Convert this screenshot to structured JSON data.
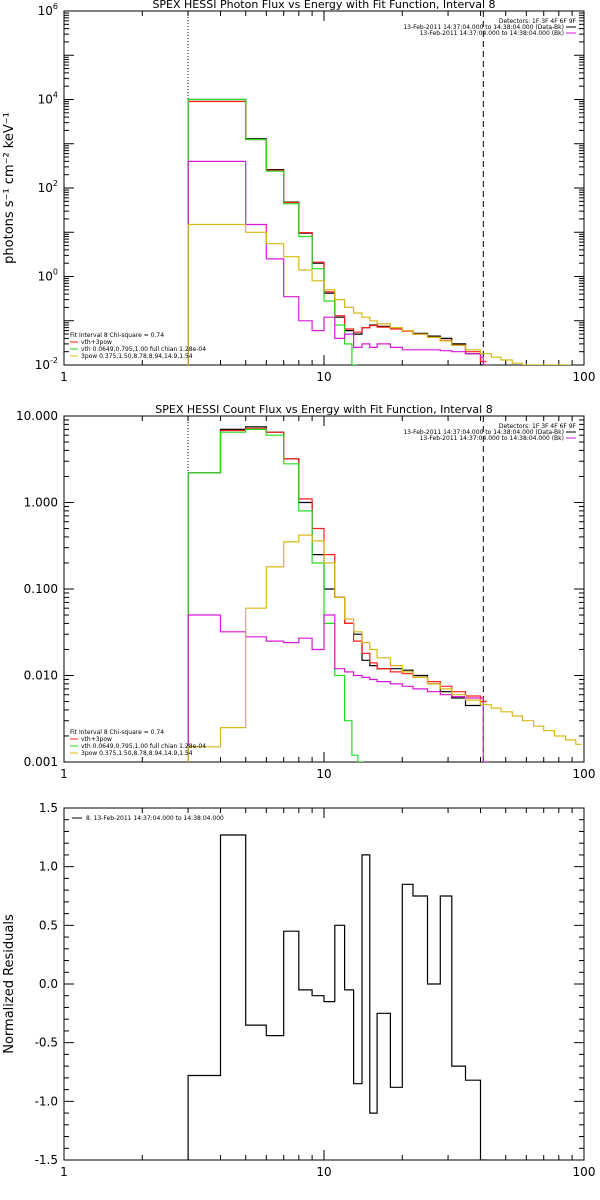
{
  "colors": {
    "black": "#000000",
    "red": "#ff1f1f",
    "green": "#22dd22",
    "magenta": "#d818d8",
    "yellow": "#d8b818"
  },
  "chart_data": [
    {
      "type": "line",
      "title": "SPEX HESSI Photon Flux vs Energy with Fit Function, Interval 8",
      "xscale": "log",
      "yscale": "log",
      "xlim": [
        1,
        100
      ],
      "ylim": [
        0.01,
        1000000
      ],
      "xticks": [
        {
          "v": 1,
          "label": "1"
        },
        {
          "v": 10,
          "label": "10"
        },
        {
          "v": 100,
          "label": "100"
        }
      ],
      "yticks": [
        {
          "v": 0.01,
          "label": "10",
          "sup": "-2"
        },
        {
          "v": 1,
          "label": "10",
          "sup": "0"
        },
        {
          "v": 100,
          "label": "10",
          "sup": "2"
        },
        {
          "v": 10000,
          "label": "10",
          "sup": "4"
        },
        {
          "v": 1000000,
          "label": "10",
          "sup": "6"
        }
      ],
      "ylabel": "photons s⁻¹ cm⁻² keV⁻¹",
      "vlines": [
        {
          "x": 3.0,
          "style": "dotted"
        },
        {
          "x": 41,
          "style": "dashed"
        }
      ],
      "legend_top": [
        "Detectors: 1F 3F 4F 6F 9F",
        "13-Feb-2011 14:37:04.000 to 14:38:04.000 (Data-Bk)",
        "13-Feb-2011 14:37:04.000 to 14:38:04.000 (Bk)"
      ],
      "legend_bottom": [
        "Fit Interval 8   Chi-square = 0.74",
        "vth+3pow",
        "vth 0.0649,0.795,1.00  full chian 1.28e-04",
        "3pow 0.375,1.50,8.78,8.94,14.9,1.54"
      ],
      "series": [
        {
          "color": "black",
          "x": [
            3.0,
            4.0,
            5.0,
            6.0,
            7.0,
            8.0,
            9.0,
            10.0,
            11.0,
            12.0,
            13.0,
            14.0,
            15.0,
            16.0,
            18.0,
            20.0,
            22.0,
            25.0,
            28.0,
            31.0,
            35.0,
            40.0
          ],
          "y": [
            10000,
            10000,
            1300,
            260,
            48,
            9.5,
            2.0,
            0.42,
            0.12,
            0.06,
            0.05,
            0.07,
            0.08,
            0.075,
            0.07,
            0.06,
            0.052,
            0.045,
            0.04,
            0.03,
            0.018,
            0.01
          ]
        },
        {
          "color": "red",
          "x": [
            3.0,
            4.0,
            5.0,
            6.0,
            7.0,
            8.0,
            9.0,
            10.0,
            11.0,
            12.0,
            13.0,
            14.0,
            15.0,
            16.0,
            18.0,
            20.0,
            22.0,
            25.0,
            28.0,
            31.0,
            35.0,
            40.0
          ],
          "y": [
            9000,
            9000,
            1250,
            250,
            47,
            9.8,
            2.1,
            0.45,
            0.13,
            0.065,
            0.055,
            0.07,
            0.078,
            0.072,
            0.065,
            0.058,
            0.05,
            0.042,
            0.036,
            0.028,
            0.02,
            0.012
          ]
        },
        {
          "color": "green",
          "x": [
            3.0,
            4.0,
            5.0,
            6.0,
            7.0,
            8.0,
            9.0,
            10.0,
            11.0,
            12.0,
            12.8
          ],
          "y": [
            10000,
            10000,
            1250,
            240,
            44,
            8.0,
            1.5,
            0.28,
            0.08,
            0.03,
            0.01
          ]
        },
        {
          "color": "magenta",
          "x": [
            3.0,
            4.0,
            5.0,
            6.0,
            7.0,
            8.0,
            9.0,
            10.0,
            11.0,
            12.0,
            13.0,
            14.0,
            15.0,
            16.0,
            18.0,
            20.0,
            22.0,
            25.0,
            28.0,
            31.0,
            35.0,
            40.0,
            41.0
          ],
          "y": [
            400,
            400,
            15,
            2.5,
            0.35,
            0.1,
            0.06,
            0.12,
            0.04,
            0.05,
            0.025,
            0.03,
            0.025,
            0.03,
            0.025,
            0.022,
            0.022,
            0.022,
            0.021,
            0.02,
            0.018,
            0.015,
            0.01
          ]
        },
        {
          "color": "yellow",
          "x": [
            3.0,
            4.0,
            5.0,
            6.0,
            7.0,
            8.0,
            9.0,
            10.0,
            11.0,
            12.0,
            13.0,
            14.0,
            15.0,
            16.0,
            18.0,
            20.0,
            22.0,
            25.0,
            28.0,
            31.0,
            35.0,
            40.0,
            44.0,
            48.0,
            53.0,
            58.0,
            64.0,
            70.0,
            77.0,
            85.0
          ],
          "y": [
            15,
            15,
            10,
            5.5,
            2.8,
            1.4,
            0.8,
            0.5,
            0.3,
            0.2,
            0.15,
            0.12,
            0.1,
            0.085,
            0.07,
            0.06,
            0.05,
            0.042,
            0.035,
            0.028,
            0.022,
            0.018,
            0.015,
            0.013,
            0.011,
            0.01,
            0.009,
            0.008,
            0.007,
            0.006
          ]
        }
      ]
    },
    {
      "type": "line",
      "title": "SPEX HESSI Count Flux vs Energy with Fit Function, Interval 8",
      "xscale": "log",
      "yscale": "log",
      "xlim": [
        1,
        100
      ],
      "ylim": [
        0.001,
        10
      ],
      "xticks": [
        {
          "v": 1,
          "label": "1"
        },
        {
          "v": 10,
          "label": "10"
        },
        {
          "v": 100,
          "label": "100"
        }
      ],
      "yticks": [
        {
          "v": 0.001,
          "label": "0.001"
        },
        {
          "v": 0.01,
          "label": "0.010"
        },
        {
          "v": 0.1,
          "label": "0.100"
        },
        {
          "v": 1,
          "label": "1.000"
        },
        {
          "v": 10,
          "label": "10.000"
        }
      ],
      "ylabel": "",
      "vlines": [
        {
          "x": 3.0,
          "style": "dotted"
        },
        {
          "x": 41,
          "style": "dashed"
        }
      ],
      "legend_top": [
        "Detectors: 1F 3F 4F 6F 9F",
        "13-Feb-2011 14:37:04.000 to 14:38:04.000 (Data-Bk)",
        "13-Feb-2011 14:37:04.000 to 14:38:04.000 (Bk)"
      ],
      "legend_bottom": [
        "Fit Interval 8   Chi-square = 0.74",
        "vth+3pow",
        "vth 0.0649,0.795,1.00  full chian 1.28e-04",
        "3pow 0.375,1.50,8.78,8.94,14.9,1.54"
      ],
      "series": [
        {
          "color": "black",
          "x": [
            3.0,
            3.5,
            4.0,
            5.0,
            6.0,
            7.0,
            8.0,
            9.0,
            10.0,
            11.0,
            12.0,
            13.0,
            14.0,
            15.0,
            16.0,
            18.0,
            20.0,
            22.0,
            25.0,
            28.0,
            31.0,
            35.0,
            40.0
          ],
          "y": [
            2.2,
            2.2,
            7.0,
            7.5,
            6.5,
            3.2,
            1.0,
            0.25,
            0.1,
            0.08,
            0.04,
            0.03,
            0.015,
            0.013,
            0.012,
            0.012,
            0.0115,
            0.01,
            0.008,
            0.0065,
            0.0055,
            0.0045,
            0.005
          ]
        },
        {
          "color": "red",
          "x": [
            3.0,
            3.5,
            4.0,
            5.0,
            6.0,
            7.0,
            8.0,
            9.0,
            10.0,
            11.0,
            12.0,
            13.0,
            14.0,
            15.0,
            16.0,
            18.0,
            20.0,
            22.0,
            25.0,
            28.0,
            31.0,
            35.0,
            40.0
          ],
          "y": [
            2.2,
            2.2,
            6.8,
            7.2,
            6.5,
            3.2,
            1.1,
            0.5,
            0.25,
            0.08,
            0.04,
            0.025,
            0.018,
            0.014,
            0.012,
            0.011,
            0.0105,
            0.0095,
            0.0085,
            0.0075,
            0.0065,
            0.0058,
            0.005
          ]
        },
        {
          "color": "green",
          "x": [
            3.0,
            3.5,
            4.0,
            5.0,
            6.0,
            7.0,
            8.0,
            9.0,
            10.0,
            11.0,
            12.0,
            12.8,
            13.5
          ],
          "y": [
            2.2,
            2.2,
            6.5,
            7.0,
            6.0,
            2.8,
            0.8,
            0.2,
            0.04,
            0.01,
            0.003,
            0.0012,
            0.001
          ]
        },
        {
          "color": "magenta",
          "x": [
            3.0,
            3.5,
            4.0,
            5.0,
            6.0,
            7.0,
            8.0,
            9.0,
            10.0,
            11.0,
            12.0,
            13.0,
            14.0,
            15.0,
            16.0,
            18.0,
            20.0,
            22.0,
            25.0,
            28.0,
            31.0,
            35.0,
            40.0,
            41.0
          ],
          "y": [
            0.05,
            0.05,
            0.032,
            0.028,
            0.025,
            0.024,
            0.027,
            0.02,
            0.05,
            0.012,
            0.011,
            0.01,
            0.0095,
            0.009,
            0.0085,
            0.008,
            0.0075,
            0.007,
            0.0065,
            0.006,
            0.0057,
            0.0055,
            0.0055,
            0.001
          ]
        },
        {
          "color": "yellow",
          "x": [
            3.0,
            3.5,
            4.0,
            5.0,
            6.0,
            7.0,
            8.0,
            9.0,
            10.0,
            11.0,
            12.0,
            13.0,
            14.0,
            15.0,
            16.0,
            18.0,
            20.0,
            22.0,
            25.0,
            28.0,
            31.0,
            35.0,
            40.0,
            44.0,
            48.0,
            53.0,
            58.0,
            64.0,
            70.0,
            77.0,
            85.0,
            93.0
          ],
          "y": [
            0.0015,
            0.0015,
            0.0025,
            0.06,
            0.18,
            0.35,
            0.42,
            0.36,
            0.2,
            0.08,
            0.045,
            0.032,
            0.024,
            0.02,
            0.016,
            0.013,
            0.011,
            0.0095,
            0.008,
            0.007,
            0.006,
            0.0052,
            0.0046,
            0.0042,
            0.0038,
            0.0034,
            0.003,
            0.0026,
            0.0023,
            0.002,
            0.0018,
            0.0016
          ]
        }
      ]
    },
    {
      "type": "line",
      "title": "",
      "xscale": "log",
      "yscale": "linear",
      "xlim": [
        1,
        100
      ],
      "ylim": [
        -1.5,
        1.5
      ],
      "xticks": [
        {
          "v": 1,
          "label": "1"
        },
        {
          "v": 10,
          "label": "10"
        },
        {
          "v": 100,
          "label": "100"
        }
      ],
      "yticks": [
        {
          "v": -1.5,
          "label": "-1.5"
        },
        {
          "v": -1.0,
          "label": "-1.0"
        },
        {
          "v": -0.5,
          "label": "-0.5"
        },
        {
          "v": 0.0,
          "label": "0.0"
        },
        {
          "v": 0.5,
          "label": "0.5"
        },
        {
          "v": 1.0,
          "label": "1.0"
        },
        {
          "v": 1.5,
          "label": "1.5"
        }
      ],
      "ylabel": "Normalized Residuals",
      "vlines": [],
      "legend_top": [
        "8. 13-Feb-2011 14:37:04.000 to 14:38:04.000"
      ],
      "legend_bottom": [],
      "series": [
        {
          "color": "black",
          "x": [
            3.0,
            3.5,
            4.0,
            5.0,
            6.0,
            7.0,
            8.0,
            9.0,
            10.0,
            11.0,
            12.0,
            13.0,
            14.0,
            15.0,
            16.0,
            18.0,
            20.0,
            22.0,
            25.0,
            28.0,
            31.0,
            35.0,
            40.0
          ],
          "y": [
            -0.78,
            -0.78,
            1.27,
            -0.35,
            -0.44,
            0.45,
            -0.05,
            -0.1,
            -0.15,
            0.5,
            -0.05,
            -0.85,
            1.1,
            -1.1,
            -0.25,
            -0.88,
            0.85,
            0.75,
            0.0,
            0.75,
            -0.7,
            -0.82,
            -1.6
          ]
        }
      ]
    }
  ]
}
